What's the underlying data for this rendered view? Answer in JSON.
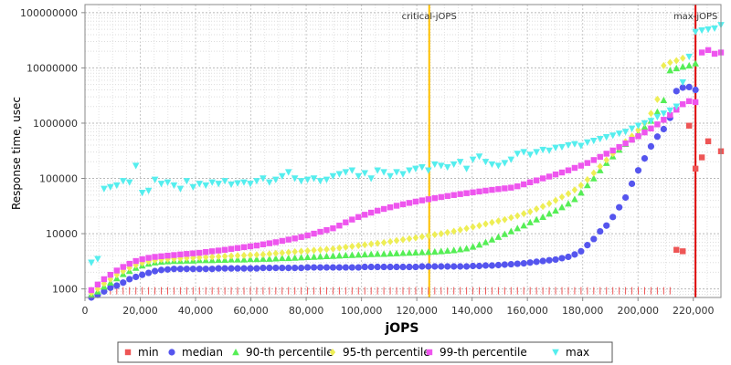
{
  "chart_data": {
    "type": "scatter",
    "xlabel": "jOPS",
    "ylabel": "Response time, usec",
    "xlim": [
      0,
      230000
    ],
    "ylim": [
      700,
      140000000
    ],
    "yscale": "log",
    "grid": true,
    "legend_placement": "bottom-center",
    "x_ticks": [
      0,
      20000,
      40000,
      60000,
      80000,
      100000,
      120000,
      140000,
      160000,
      180000,
      200000,
      220000
    ],
    "x_tick_labels": [
      "0",
      "20,000",
      "40,000",
      "60,000",
      "80,000",
      "100,000",
      "120,000",
      "140,000",
      "160,000",
      "180,000",
      "200,000",
      "220,000"
    ],
    "y_ticks": [
      1000,
      10000,
      100000,
      1000000,
      10000000,
      100000000
    ],
    "y_tick_labels": [
      "1000",
      "10000",
      "100000",
      "1000000",
      "10000000",
      "100000000"
    ],
    "annotations": [
      {
        "label": "critical-jOPS",
        "x": 124500,
        "color": "#ffc000"
      },
      {
        "label": "max-jOPS",
        "x": 220800,
        "color": "#dd0000"
      }
    ],
    "x": [
      2300,
      4600,
      6900,
      9200,
      11500,
      13800,
      16100,
      18400,
      20700,
      23000,
      25300,
      27600,
      29900,
      32200,
      34500,
      36800,
      39100,
      41400,
      43700,
      46000,
      48300,
      50600,
      52900,
      55200,
      57500,
      59800,
      62100,
      64400,
      66700,
      69000,
      71300,
      73600,
      75900,
      78200,
      80500,
      82800,
      85100,
      87400,
      89700,
      92000,
      94300,
      96600,
      98900,
      101200,
      103500,
      105800,
      108100,
      110400,
      112700,
      115000,
      117300,
      119600,
      121900,
      124200,
      126500,
      128800,
      131100,
      133400,
      135700,
      138000,
      140300,
      142600,
      144900,
      147200,
      149500,
      151800,
      154100,
      156400,
      158700,
      161000,
      163300,
      165600,
      167900,
      170200,
      172500,
      174800,
      177100,
      179400,
      181700,
      184000,
      186300,
      188600,
      190900,
      193200,
      195500,
      197800,
      200100,
      202400,
      204700,
      207000,
      209300,
      211600,
      213900,
      216200,
      218500,
      220800,
      223100,
      225400,
      227700,
      230000
    ],
    "series": [
      {
        "name": "min",
        "color": "#ee5555",
        "marker": "square",
        "values": [
          1000,
          1000,
          1000,
          1000,
          1000,
          1000,
          1000,
          1000,
          1000,
          1000,
          1000,
          1000,
          1000,
          1000,
          1000,
          1000,
          1000,
          1000,
          1000,
          1000,
          1000,
          1000,
          1000,
          1000,
          1000,
          1000,
          1000,
          1000,
          1000,
          1000,
          1000,
          1000,
          1000,
          1000,
          1000,
          1000,
          1000,
          1000,
          1000,
          1000,
          1000,
          1000,
          1000,
          1000,
          1000,
          1000,
          1000,
          1000,
          1000,
          1000,
          1000,
          1000,
          1000,
          1000,
          1000,
          1000,
          1000,
          1000,
          1000,
          1000,
          1000,
          1000,
          1000,
          1000,
          1000,
          1000,
          1000,
          1000,
          1000,
          1000,
          1000,
          1000,
          1000,
          1000,
          1000,
          1000,
          1000,
          1000,
          1000,
          1000,
          1000,
          1000,
          1000,
          1000,
          1000,
          1000,
          1000,
          1000,
          1000,
          1000,
          1000,
          1000,
          5100,
          4800,
          900000,
          150000,
          240000,
          470000,
          null,
          310000
        ]
      },
      {
        "name": "median",
        "color": "#5555ee",
        "marker": "circle",
        "values": [
          700,
          780,
          900,
          1050,
          1150,
          1300,
          1500,
          1650,
          1800,
          1950,
          2100,
          2200,
          2250,
          2300,
          2300,
          2300,
          2300,
          2300,
          2300,
          2300,
          2350,
          2350,
          2350,
          2350,
          2350,
          2350,
          2350,
          2400,
          2400,
          2400,
          2400,
          2400,
          2400,
          2400,
          2450,
          2450,
          2450,
          2450,
          2450,
          2450,
          2450,
          2450,
          2450,
          2500,
          2500,
          2500,
          2500,
          2500,
          2500,
          2500,
          2500,
          2500,
          2550,
          2550,
          2550,
          2550,
          2550,
          2550,
          2550,
          2550,
          2600,
          2600,
          2650,
          2650,
          2700,
          2750,
          2800,
          2850,
          2900,
          3000,
          3100,
          3200,
          3300,
          3400,
          3600,
          3800,
          4200,
          4800,
          6200,
          8000,
          11000,
          14000,
          20000,
          30000,
          45000,
          80000,
          140000,
          230000,
          380000,
          570000,
          780000,
          1250000,
          3800000,
          4400000,
          4500000,
          4000000,
          null,
          null,
          null,
          null
        ]
      },
      {
        "name": "90-th percentile",
        "color": "#55ee55",
        "marker": "triangle-up",
        "values": [
          780,
          900,
          1100,
          1300,
          1550,
          1850,
          2100,
          2400,
          2650,
          2850,
          3000,
          3100,
          3150,
          3200,
          3200,
          3250,
          3250,
          3300,
          3300,
          3300,
          3350,
          3350,
          3400,
          3400,
          3400,
          3450,
          3450,
          3500,
          3500,
          3550,
          3600,
          3600,
          3650,
          3700,
          3750,
          3800,
          3850,
          3900,
          3950,
          4000,
          4050,
          4100,
          4150,
          4200,
          4250,
          4300,
          4300,
          4350,
          4400,
          4450,
          4500,
          4550,
          4600,
          4650,
          4700,
          4800,
          4900,
          5000,
          5200,
          5400,
          5800,
          6300,
          7000,
          7800,
          8700,
          9800,
          11000,
          12500,
          14000,
          16000,
          18000,
          20000,
          23000,
          26000,
          30000,
          35000,
          42000,
          55000,
          75000,
          100000,
          140000,
          190000,
          250000,
          330000,
          420000,
          520000,
          650000,
          850000,
          1100000,
          1600000,
          2600000,
          9000000,
          9800000,
          10500000,
          11000000,
          12000000,
          null,
          null,
          null,
          null
        ]
      },
      {
        "name": "95-th percentile",
        "color": "#eeee55",
        "marker": "diamond",
        "values": [
          850,
          1000,
          1250,
          1500,
          1800,
          2100,
          2400,
          2700,
          2950,
          3150,
          3300,
          3400,
          3450,
          3500,
          3550,
          3600,
          3650,
          3700,
          3750,
          3800,
          3850,
          3900,
          3950,
          4000,
          4050,
          4100,
          4150,
          4200,
          4300,
          4400,
          4500,
          4600,
          4700,
          4800,
          4900,
          5000,
          5100,
          5200,
          5300,
          5500,
          5700,
          5900,
          6100,
          6300,
          6500,
          6700,
          6900,
          7200,
          7500,
          7800,
          8100,
          8400,
          8800,
          9200,
          9600,
          10000,
          10500,
          11000,
          11700,
          12400,
          13200,
          14000,
          15000,
          16000,
          17000,
          18000,
          19500,
          21000,
          23000,
          25000,
          28000,
          31000,
          35000,
          40000,
          46000,
          53000,
          62000,
          75000,
          95000,
          125000,
          165000,
          215000,
          280000,
          360000,
          460000,
          580000,
          750000,
          1000000,
          1500000,
          2700000,
          11000000,
          12500000,
          13500000,
          15000000,
          null,
          null,
          null,
          null,
          null,
          null
        ]
      },
      {
        "name": "99-th percentile",
        "color": "#ee55ee",
        "marker": "square",
        "values": [
          950,
          1200,
          1500,
          1800,
          2150,
          2500,
          2850,
          3200,
          3450,
          3650,
          3800,
          3900,
          4000,
          4100,
          4200,
          4300,
          4400,
          4500,
          4650,
          4800,
          4950,
          5100,
          5300,
          5500,
          5700,
          5900,
          6100,
          6400,
          6700,
          7000,
          7400,
          7800,
          8200,
          8700,
          9300,
          10000,
          10800,
          11600,
          12500,
          14000,
          16000,
          18000,
          20000,
          22000,
          24000,
          26000,
          28000,
          30000,
          32000,
          34000,
          36000,
          38000,
          40000,
          42000,
          44000,
          46000,
          48000,
          50000,
          52000,
          54000,
          56000,
          58000,
          60000,
          62000,
          64000,
          66000,
          68000,
          72000,
          78000,
          85000,
          92000,
          100000,
          108000,
          118000,
          128000,
          140000,
          155000,
          170000,
          190000,
          215000,
          245000,
          280000,
          320000,
          370000,
          430000,
          500000,
          580000,
          680000,
          800000,
          950000,
          1150000,
          1400000,
          1750000,
          2200000,
          2500000,
          2400000,
          19000000,
          21000000,
          18000000,
          19000000
        ]
      },
      {
        "name": "max",
        "color": "#55eeee",
        "marker": "triangle-down",
        "values": [
          3000,
          3500,
          65000,
          70000,
          75000,
          90000,
          85000,
          170000,
          55000,
          60000,
          95000,
          80000,
          85000,
          75000,
          65000,
          90000,
          70000,
          80000,
          75000,
          85000,
          80000,
          90000,
          78000,
          82000,
          85000,
          80000,
          90000,
          100000,
          85000,
          95000,
          110000,
          130000,
          100000,
          90000,
          95000,
          100000,
          90000,
          95000,
          110000,
          120000,
          130000,
          140000,
          110000,
          125000,
          100000,
          140000,
          130000,
          110000,
          130000,
          120000,
          140000,
          150000,
          160000,
          140000,
          180000,
          170000,
          160000,
          180000,
          200000,
          150000,
          220000,
          250000,
          200000,
          180000,
          170000,
          190000,
          220000,
          280000,
          300000,
          270000,
          300000,
          330000,
          320000,
          360000,
          370000,
          400000,
          420000,
          390000,
          450000,
          480000,
          520000,
          560000,
          600000,
          650000,
          700000,
          800000,
          900000,
          1000000,
          1100000,
          1300000,
          1500000,
          1700000,
          2000000,
          5500000,
          16000000,
          45000000,
          48000000,
          50000000,
          52000000,
          60000000
        ]
      }
    ]
  }
}
